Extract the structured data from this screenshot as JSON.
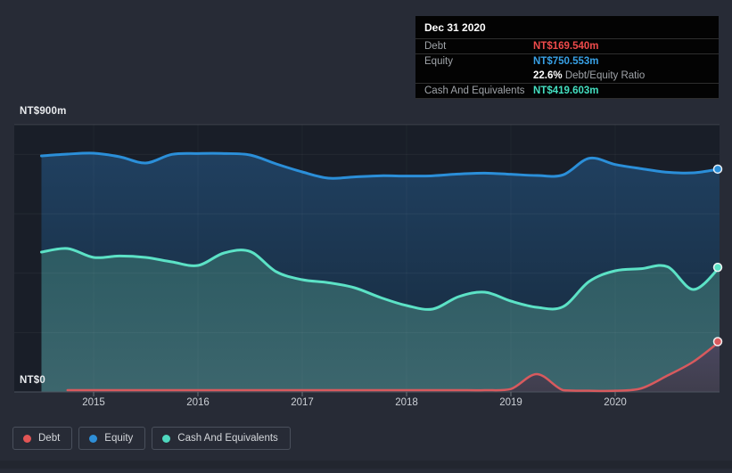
{
  "tooltip": {
    "date": "Dec 31 2020",
    "debt_label": "Debt",
    "debt_value": "NT$169.540m",
    "equity_label": "Equity",
    "equity_value": "NT$750.553m",
    "ratio_value": "22.6%",
    "ratio_label": "Debt/Equity Ratio",
    "cash_label": "Cash And Equivalents",
    "cash_value": "NT$419.603m"
  },
  "axis": {
    "y_top_label": "NT$900m",
    "y_bottom_label": "NT$0"
  },
  "legend": [
    {
      "label": "Debt",
      "color": "#e25555"
    },
    {
      "label": "Equity",
      "color": "#2e8fd8"
    },
    {
      "label": "Cash And Equivalents",
      "color": "#4fd8bf"
    }
  ],
  "colors": {
    "debt_line": "#d85a5e",
    "equity_line": "#2b8fd9",
    "cash_line": "#5ce2c6",
    "plot_background": "#191e28",
    "page_background": "#272b36"
  },
  "chart_data": {
    "type": "area",
    "title": "Debt to Equity History (NT$m)",
    "ylabel": "NT$m",
    "ylim": [
      0,
      900
    ],
    "y_gridline_values": [
      200,
      400,
      600,
      800
    ],
    "y_top_value": 900,
    "x_range": [
      2014.5,
      2021.0
    ],
    "x_tick_years": [
      2015,
      2016,
      2017,
      2018,
      2019,
      2020
    ],
    "x_tick_labels": [
      "2015",
      "2016",
      "2017",
      "2018",
      "2019",
      "2020"
    ],
    "x": [
      2014.5,
      2014.75,
      2015.0,
      2015.25,
      2015.5,
      2015.75,
      2016.0,
      2016.25,
      2016.5,
      2016.75,
      2017.0,
      2017.25,
      2017.5,
      2017.75,
      2018.0,
      2018.25,
      2018.5,
      2018.75,
      2019.0,
      2019.25,
      2019.5,
      2019.75,
      2020.0,
      2020.25,
      2020.5,
      2020.75,
      2021.0
    ],
    "series": [
      {
        "name": "Equity",
        "color": "#2b8fd9",
        "final_value": 750.553,
        "values": [
          795,
          801,
          804,
          792,
          771,
          800,
          803,
          803,
          798,
          768,
          741,
          720,
          724,
          728,
          727,
          728,
          734,
          737,
          733,
          729,
          731,
          787,
          766,
          752,
          740,
          738,
          750.553
        ]
      },
      {
        "name": "Cash And Equivalents",
        "color": "#5ce2c6",
        "final_value": 419.603,
        "values": [
          471,
          483,
          453,
          458,
          453,
          438,
          426,
          468,
          473,
          405,
          378,
          368,
          351,
          318,
          291,
          279,
          321,
          336,
          306,
          285,
          287,
          372,
          408,
          415,
          422,
          345,
          419.603
        ]
      },
      {
        "name": "Debt",
        "color": "#d85a5e",
        "final_value": 169.54,
        "values": [
          null,
          6,
          6,
          6,
          6,
          6,
          6,
          6,
          6,
          6,
          6,
          6,
          6,
          6,
          6,
          6,
          6,
          6,
          10,
          60,
          6,
          4,
          4,
          12,
          55,
          102,
          169.54
        ]
      }
    ],
    "legend_position": "bottom-left",
    "grid": true
  }
}
